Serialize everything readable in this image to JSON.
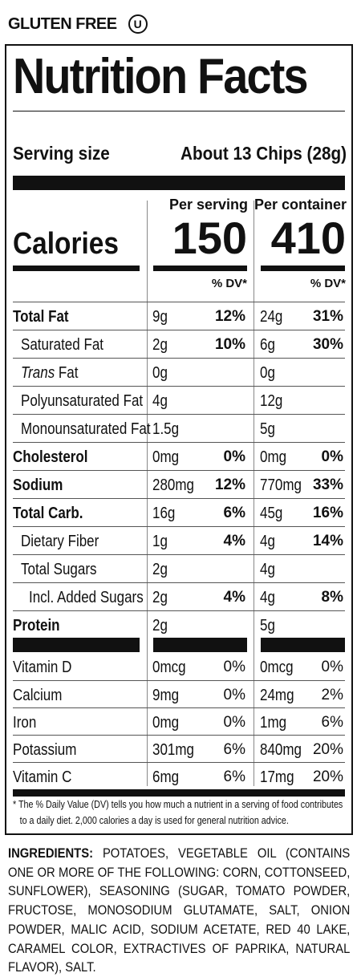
{
  "header": {
    "gluten_free": "GLUTEN FREE",
    "kosher_mark": "U"
  },
  "label": {
    "title": "Nutrition Facts",
    "serving_size_label": "Serving size",
    "serving_size_value": "About 13 Chips (28g)",
    "per_serving_label": "Per serving",
    "per_container_label": "Per container",
    "calories_label": "Calories",
    "calories_per_serving": "150",
    "calories_per_container": "410",
    "dv_header": "% DV*"
  },
  "nutrients": [
    {
      "name": "Total Fat",
      "bold": true,
      "indent": 0,
      "serving": "9g",
      "serving_dv": "12%",
      "container": "24g",
      "container_dv": "31%"
    },
    {
      "name": "Saturated Fat",
      "bold": false,
      "indent": 1,
      "serving": "2g",
      "serving_dv": "10%",
      "container": "6g",
      "container_dv": "30%"
    },
    {
      "name": "Trans Fat",
      "bold": false,
      "indent": 1,
      "italic_word": "Trans",
      "rest": " Fat",
      "serving": "0g",
      "serving_dv": "",
      "container": "0g",
      "container_dv": ""
    },
    {
      "name": "Polyunsaturated Fat",
      "bold": false,
      "indent": 1,
      "serving": "4g",
      "serving_dv": "",
      "container": "12g",
      "container_dv": ""
    },
    {
      "name": "Monounsaturated Fat",
      "bold": false,
      "indent": 1,
      "serving": "1.5g",
      "serving_dv": "",
      "container": "5g",
      "container_dv": ""
    },
    {
      "name": "Cholesterol",
      "bold": true,
      "indent": 0,
      "serving": "0mg",
      "serving_dv": "0%",
      "container": "0mg",
      "container_dv": "0%"
    },
    {
      "name": "Sodium",
      "bold": true,
      "indent": 0,
      "serving": "280mg",
      "serving_dv": "12%",
      "container": "770mg",
      "container_dv": "33%"
    },
    {
      "name": "Total Carb.",
      "bold": true,
      "indent": 0,
      "serving": "16g",
      "serving_dv": "6%",
      "container": "45g",
      "container_dv": "16%"
    },
    {
      "name": "Dietary Fiber",
      "bold": false,
      "indent": 1,
      "serving": "1g",
      "serving_dv": "4%",
      "container": "4g",
      "container_dv": "14%"
    },
    {
      "name": "Total Sugars",
      "bold": false,
      "indent": 1,
      "serving": "2g",
      "serving_dv": "",
      "container": "4g",
      "container_dv": ""
    },
    {
      "name": "Incl. Added Sugars",
      "bold": false,
      "indent": 2,
      "serving": "2g",
      "serving_dv": "4%",
      "container": "4g",
      "container_dv": "8%"
    },
    {
      "name": "Protein",
      "bold": true,
      "indent": 0,
      "serving": "2g",
      "serving_dv": "",
      "container": "5g",
      "container_dv": ""
    }
  ],
  "vitamins": [
    {
      "name": "Vitamin D",
      "serving": "0mcg",
      "serving_dv": "0%",
      "container": "0mcg",
      "container_dv": "0%"
    },
    {
      "name": "Calcium",
      "serving": "9mg",
      "serving_dv": "0%",
      "container": "24mg",
      "container_dv": "2%"
    },
    {
      "name": "Iron",
      "serving": "0mg",
      "serving_dv": "0%",
      "container": "1mg",
      "container_dv": "6%"
    },
    {
      "name": "Potassium",
      "serving": "301mg",
      "serving_dv": "6%",
      "container": "840mg",
      "container_dv": "20%"
    },
    {
      "name": "Vitamin C",
      "serving": "6mg",
      "serving_dv": "6%",
      "container": "17mg",
      "container_dv": "20%"
    }
  ],
  "footnote": {
    "line1": "* The % Daily Value (DV) tells you how much a nutrient in a serving of food contributes",
    "line2": "to a daily diet. 2,000 calories a day is used for general nutrition advice."
  },
  "ingredients": {
    "label": "INGREDIENTS:",
    "text": "POTATOES, VEGETABLE OIL (CONTAINS ONE OR MORE OF THE FOLLOWING: CORN, COTTONSEED, SUNFLOWER), SEASONING (SUGAR, TOMATO POWDER, FRUCTOSE, MONOSODIUM GLUTAMATE, SALT, ONION POWDER, MALIC ACID, SODIUM ACETATE, RED 40 LAKE, CARAMEL COLOR, EXTRACTIVES OF PAPRIKA, NATURAL FLAVOR), SALT."
  }
}
